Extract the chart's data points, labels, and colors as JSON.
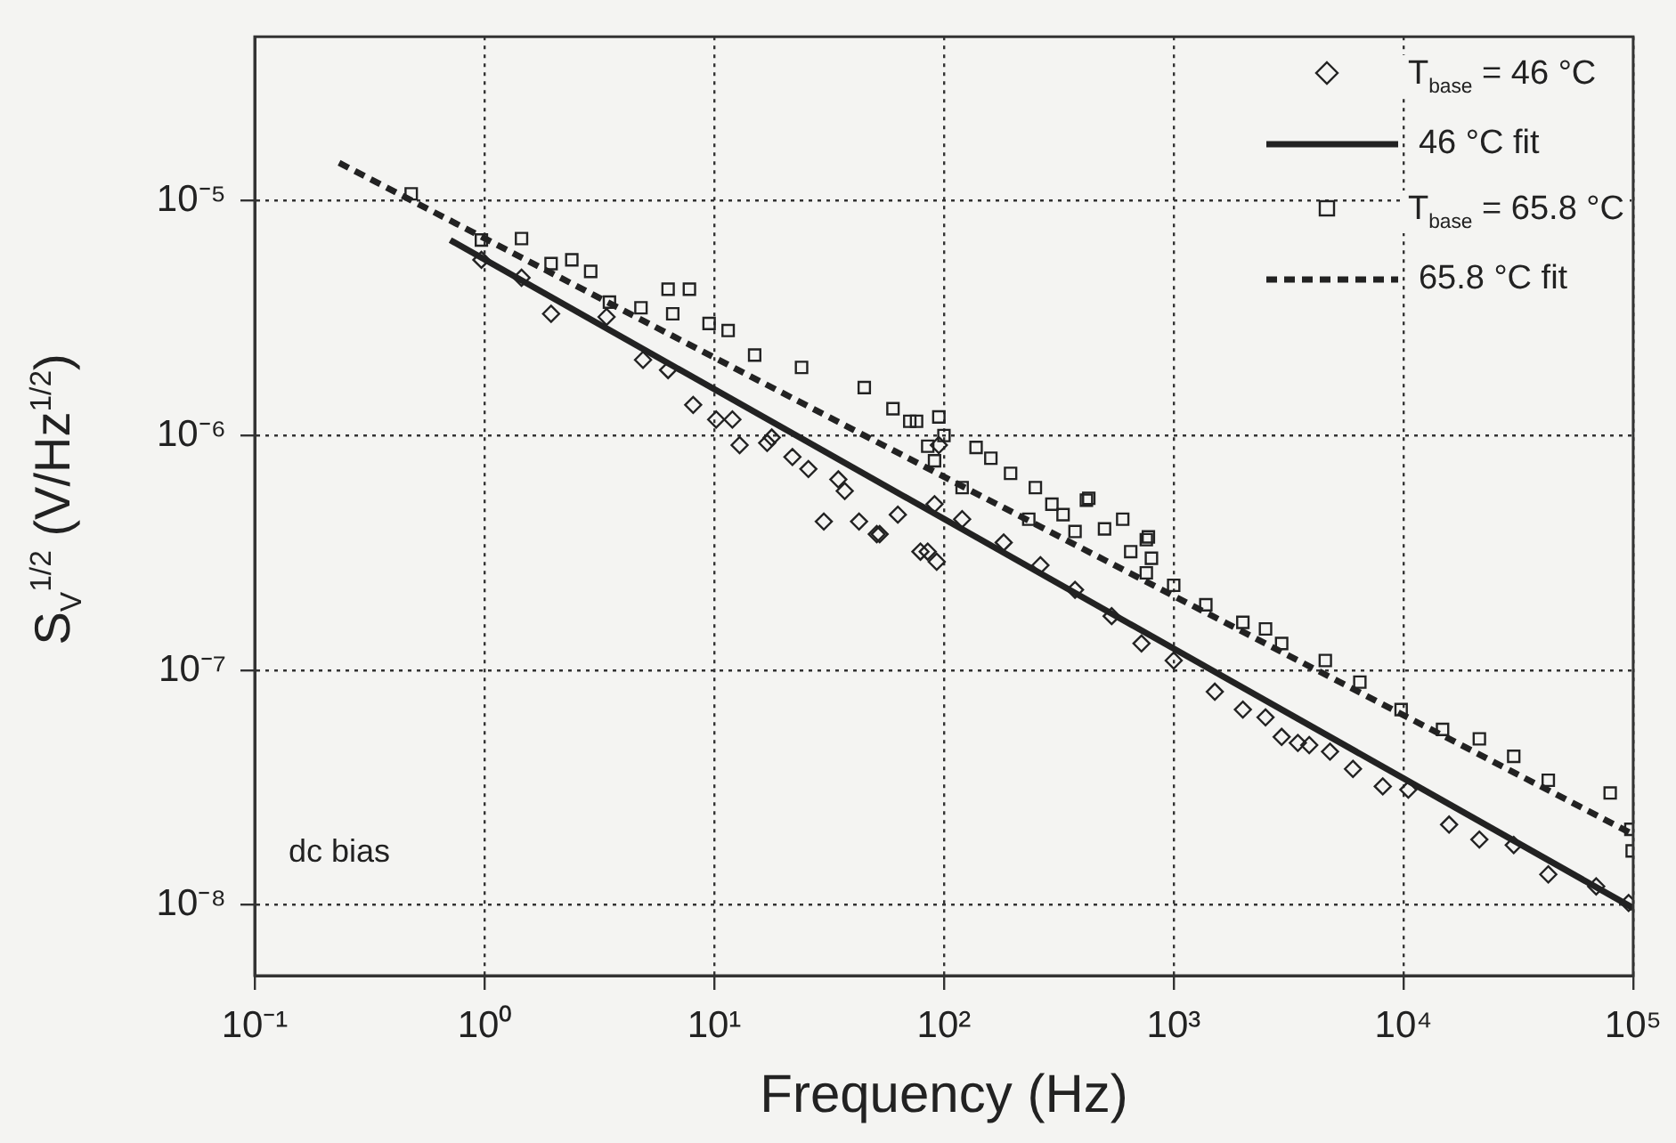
{
  "chart_data": {
    "type": "scatter",
    "xlabel": "Frequency (Hz)",
    "ylabel": "S$_{V}$$^{1/2}$ (V/Hz$^{1/2}$)",
    "log": "xy",
    "grid": true,
    "legend": "top right",
    "xlim": [
      0.1,
      100000
    ],
    "ylim": [
      5e-09,
      5e-05
    ],
    "xticks": [
      {
        "value": 0.1,
        "label": "10⁻¹"
      },
      {
        "value": 1,
        "label": "10⁰"
      },
      {
        "value": 10,
        "label": "10¹"
      },
      {
        "value": 100,
        "label": "10²"
      },
      {
        "value": 1000,
        "label": "10³"
      },
      {
        "value": 10000,
        "label": "10⁴"
      },
      {
        "value": 100000,
        "label": "10⁵"
      }
    ],
    "yticks": [
      {
        "value": 1e-08,
        "label": "10⁻⁸"
      },
      {
        "value": 1e-07,
        "label": "10⁻⁷"
      },
      {
        "value": 1e-06,
        "label": "10⁻⁶"
      },
      {
        "value": 1e-05,
        "label": "10⁻⁵"
      }
    ],
    "annotations": [
      "dc bias"
    ],
    "series": [
      {
        "name": "T$_{base}$ = 46 °C",
        "marker": "diamond",
        "color": "#222222",
        "x": [
          0.97,
          1.45,
          1.95,
          3.4,
          4.9,
          6.3,
          8.1,
          10.2,
          12,
          12.9,
          17,
          17.8,
          21.9,
          25.7,
          30,
          34.7,
          37,
          42.7,
          51,
          52.5,
          63,
          79,
          85,
          91,
          93,
          95,
          120,
          182,
          263,
          372,
          537,
          724,
          1000,
          1510,
          2000,
          2510,
          2950,
          3470,
          3890,
          4790,
          6030,
          8130,
          10500,
          15800,
          21400,
          30200,
          42700,
          69000,
          95500
        ],
        "values": [
          5.6e-06,
          4.7e-06,
          3.3e-06,
          3.2e-06,
          2.1e-06,
          1.9e-06,
          1.35e-06,
          1.17e-06,
          1.17e-06,
          9.1e-07,
          9.3e-07,
          9.8e-07,
          8.1e-07,
          7.2e-07,
          4.3e-07,
          6.5e-07,
          5.8e-07,
          4.3e-07,
          3.8e-07,
          3.8e-07,
          4.6e-07,
          3.2e-07,
          3.2e-07,
          5.1e-07,
          2.9e-07,
          9.1e-07,
          4.4e-07,
          3.5e-07,
          2.8e-07,
          2.2e-07,
          1.7e-07,
          1.3e-07,
          1.1e-07,
          8.1e-08,
          6.8e-08,
          6.3e-08,
          5.2e-08,
          4.9e-08,
          4.8e-08,
          4.5e-08,
          3.8e-08,
          3.2e-08,
          3.1e-08,
          2.2e-08,
          1.9e-08,
          1.8e-08,
          1.35e-08,
          1.2e-08,
          1.02e-08
        ]
      },
      {
        "name": "46 °C fit",
        "type": "line",
        "marker": "none",
        "line_style": "solid",
        "color": "#222222",
        "x": [
          0.71,
          100000
        ],
        "values": [
          6.8e-06,
          9.7e-09
        ]
      },
      {
        "name": "T$_{base}$ = 65.8 °C",
        "marker": "square",
        "color": "#222222",
        "x": [
          0.48,
          0.97,
          1.45,
          1.95,
          2.4,
          2.9,
          3.5,
          4.8,
          6.3,
          6.6,
          7.8,
          9.5,
          11.5,
          15,
          24,
          45,
          60,
          71,
          76,
          85,
          91,
          95,
          100,
          120,
          138,
          160,
          195,
          234,
          250,
          295,
          330,
          372,
          417,
          427,
          500,
          600,
          650,
          760,
          776,
          760,
          800,
          1000,
          1380,
          2000,
          2510,
          2950,
          4570,
          6460,
          9770,
          14800,
          21400,
          30200,
          42700,
          79400,
          97700,
          99000
        ],
        "values": [
          1.07e-05,
          6.8e-06,
          6.9e-06,
          5.4e-06,
          5.6e-06,
          5e-06,
          3.7e-06,
          3.5e-06,
          4.2e-06,
          3.3e-06,
          4.2e-06,
          3e-06,
          2.8e-06,
          2.2e-06,
          1.95e-06,
          1.6e-06,
          1.3e-06,
          1.15e-06,
          1.15e-06,
          9e-07,
          7.8e-07,
          1.2e-06,
          1e-06,
          6e-07,
          8.9e-07,
          8e-07,
          6.9e-07,
          4.4e-07,
          6e-07,
          5.1e-07,
          4.6e-07,
          3.9e-07,
          5.3e-07,
          5.4e-07,
          4e-07,
          4.4e-07,
          3.2e-07,
          3.6e-07,
          3.7e-07,
          2.6e-07,
          3e-07,
          2.3e-07,
          1.9e-07,
          1.6e-07,
          1.5e-07,
          1.3e-07,
          1.1e-07,
          8.9e-08,
          6.8e-08,
          5.6e-08,
          5.1e-08,
          4.3e-08,
          3.4e-08,
          3e-08,
          2.1e-08,
          1.7e-08
        ]
      },
      {
        "name": "65.8 °C fit",
        "type": "line",
        "marker": "none",
        "line_style": "dashed",
        "color": "#222222",
        "x": [
          0.233,
          100000
        ],
        "values": [
          1.45e-05,
          2e-08
        ]
      }
    ]
  }
}
